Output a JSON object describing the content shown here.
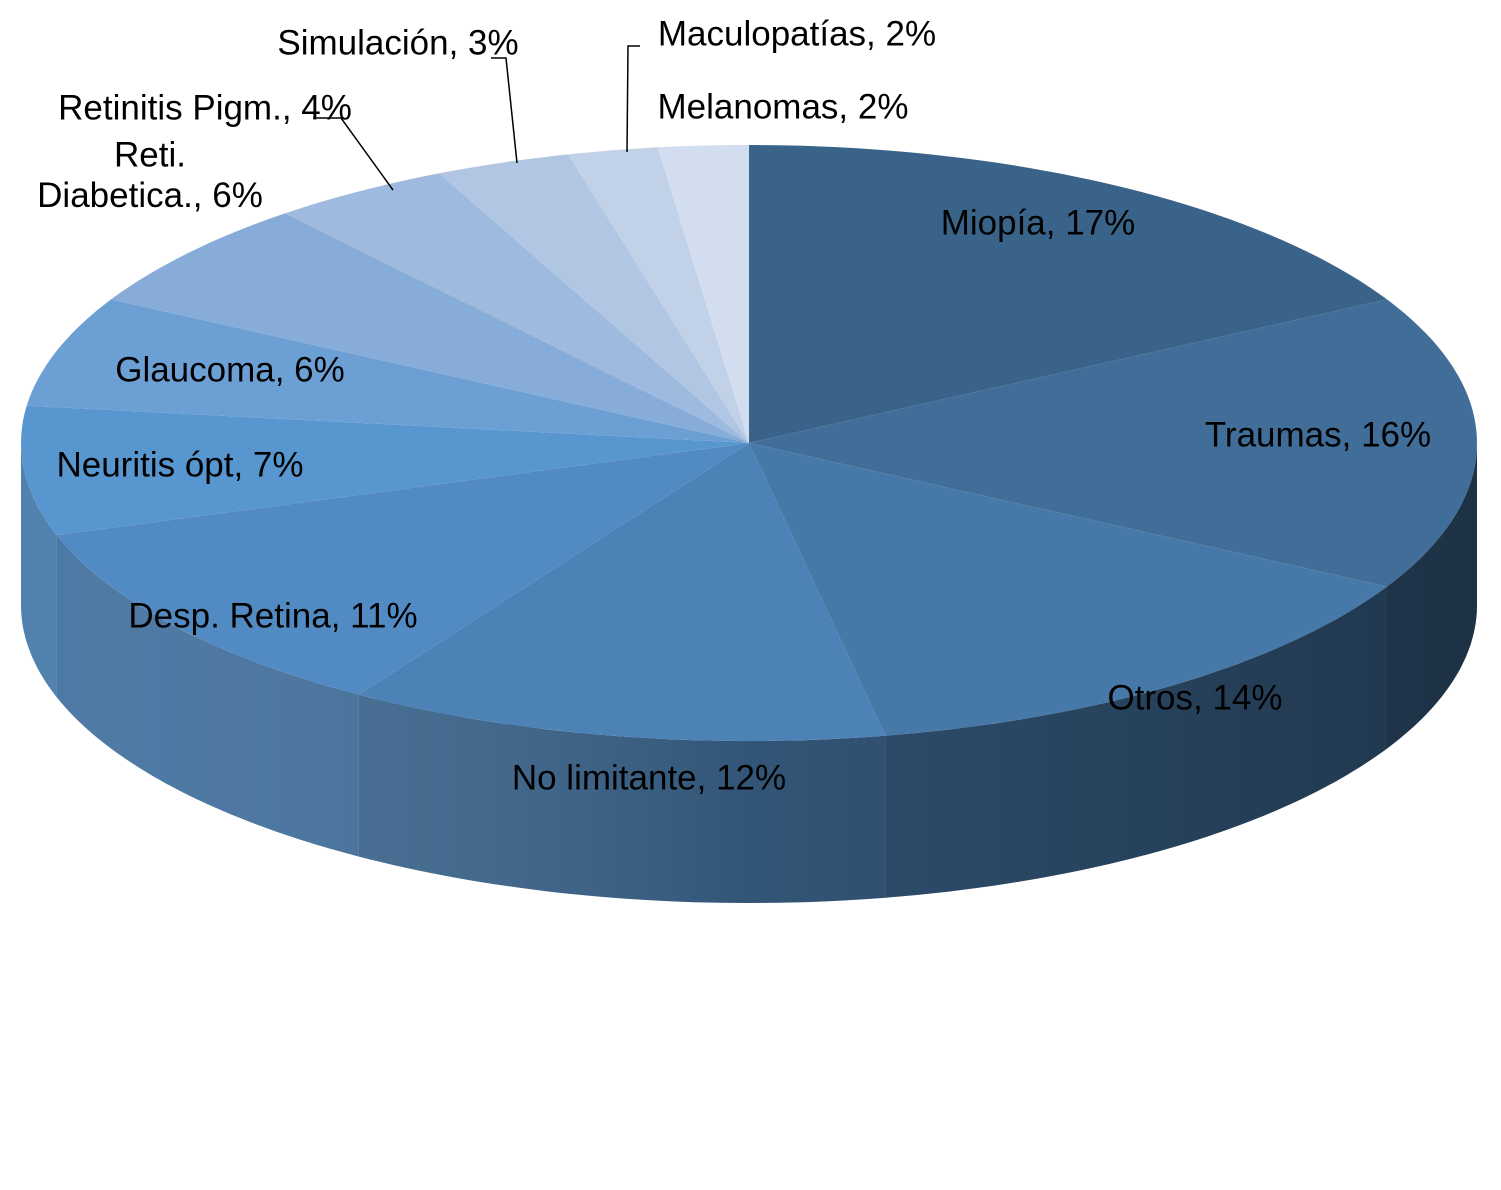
{
  "chart_data": {
    "type": "pie",
    "style": "3d",
    "legend": "none",
    "slices": [
      {
        "category": "Miopía",
        "value": 17,
        "label": "Miopía, 17%",
        "color": "#3a6389"
      },
      {
        "category": "Traumas",
        "value": 16,
        "label": "Traumas, 16%",
        "color": "#416e99"
      },
      {
        "category": "Otros",
        "value": 14,
        "label": "Otros, 14%",
        "color": "#4779a8"
      },
      {
        "category": "No limitante",
        "value": 12,
        "label": "No limitante, 12%",
        "color": "#4d82b6"
      },
      {
        "category": "Desp. Retina",
        "value": 11,
        "label": "Desp. Retina, 11%",
        "color": "#528bc3"
      },
      {
        "category": "Neuritis ópt",
        "value": 7,
        "label": "Neuritis ópt, 7%",
        "color": "#5896cf"
      },
      {
        "category": "Glaucoma",
        "value": 6,
        "label": "Glaucoma, 6%",
        "color": "#6c9fd4"
      },
      {
        "category": "Reti. Diabetica.",
        "value": 6,
        "label": "Reti. Diabetica., 6%",
        "color": "#87acd8"
      },
      {
        "category": "Retinitis Pigm.",
        "value": 4,
        "label": "Retinitis Pigm., 4%",
        "color": "#9fbadf"
      },
      {
        "category": "Simulación",
        "value": 3,
        "label": "Simulación, 3%",
        "color": "#b0c6e3"
      },
      {
        "category": "Maculopatías",
        "value": 2,
        "label": "Maculopatías, 2%",
        "color": "#c1d2e8"
      },
      {
        "category": "Melanomas",
        "value": 2,
        "label": "Melanomas, 2%",
        "color": "#d2deef"
      }
    ]
  }
}
